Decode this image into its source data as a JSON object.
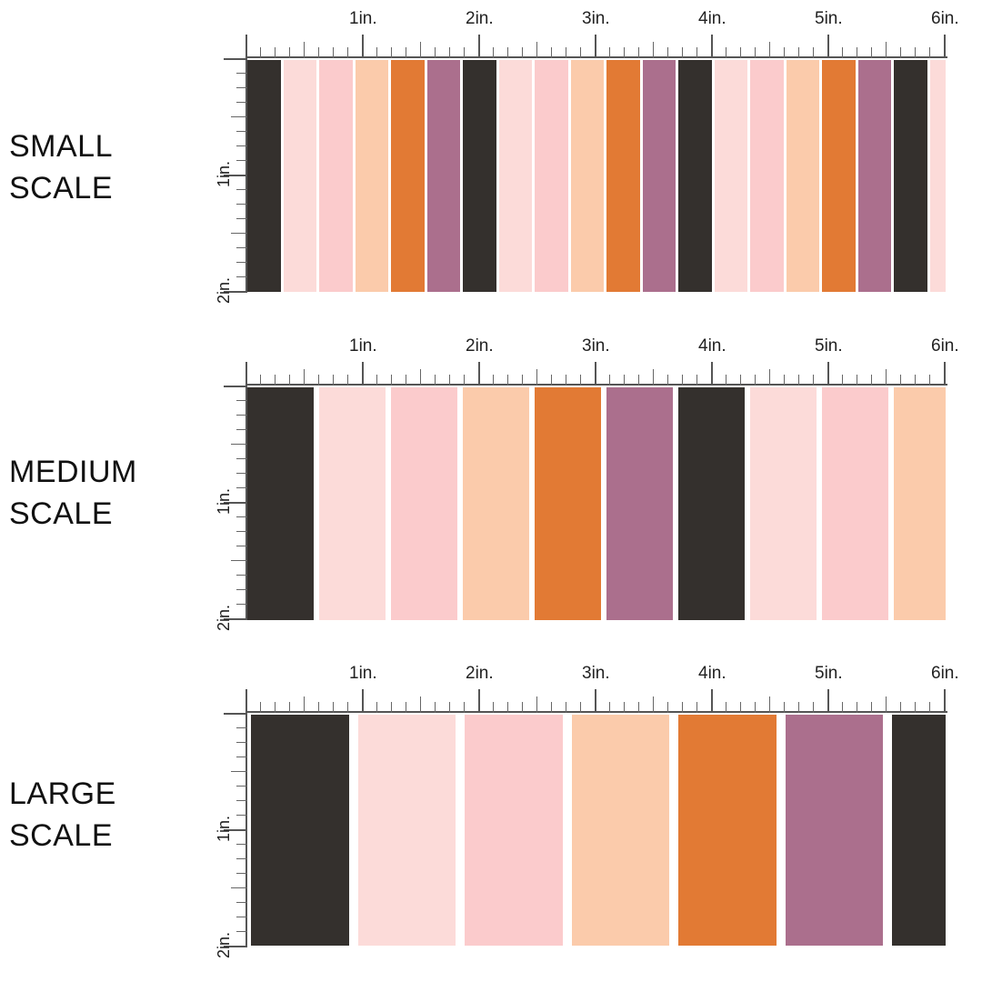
{
  "colors": {
    "dark": "#34302d",
    "blush": "#fcdbd9",
    "pink": "#fbcbcc",
    "peach": "#fbcbab",
    "orange": "#e27a34",
    "mauve": "#ab6f8d"
  },
  "ruler": {
    "top_labels": [
      "1in.",
      "2in.",
      "3in.",
      "4in.",
      "5in.",
      "6in."
    ],
    "side_labels": [
      "1in.",
      "2in."
    ]
  },
  "panels": [
    {
      "id": "small",
      "label_lines": [
        "SMALL",
        "SCALE"
      ],
      "stripe_count": 20,
      "sequence": [
        "dark",
        "blush",
        "pink",
        "peach",
        "orange",
        "mauve"
      ]
    },
    {
      "id": "medium",
      "label_lines": [
        "MEDIUM",
        "SCALE"
      ],
      "stripe_count": 10,
      "sequence": [
        "dark",
        "blush",
        "pink",
        "peach",
        "orange",
        "mauve"
      ]
    },
    {
      "id": "large",
      "label_lines": [
        "LARGE",
        "SCALE"
      ],
      "stripe_count": 7,
      "sequence": [
        "dark",
        "blush",
        "pink",
        "peach",
        "orange",
        "mauve"
      ]
    }
  ]
}
